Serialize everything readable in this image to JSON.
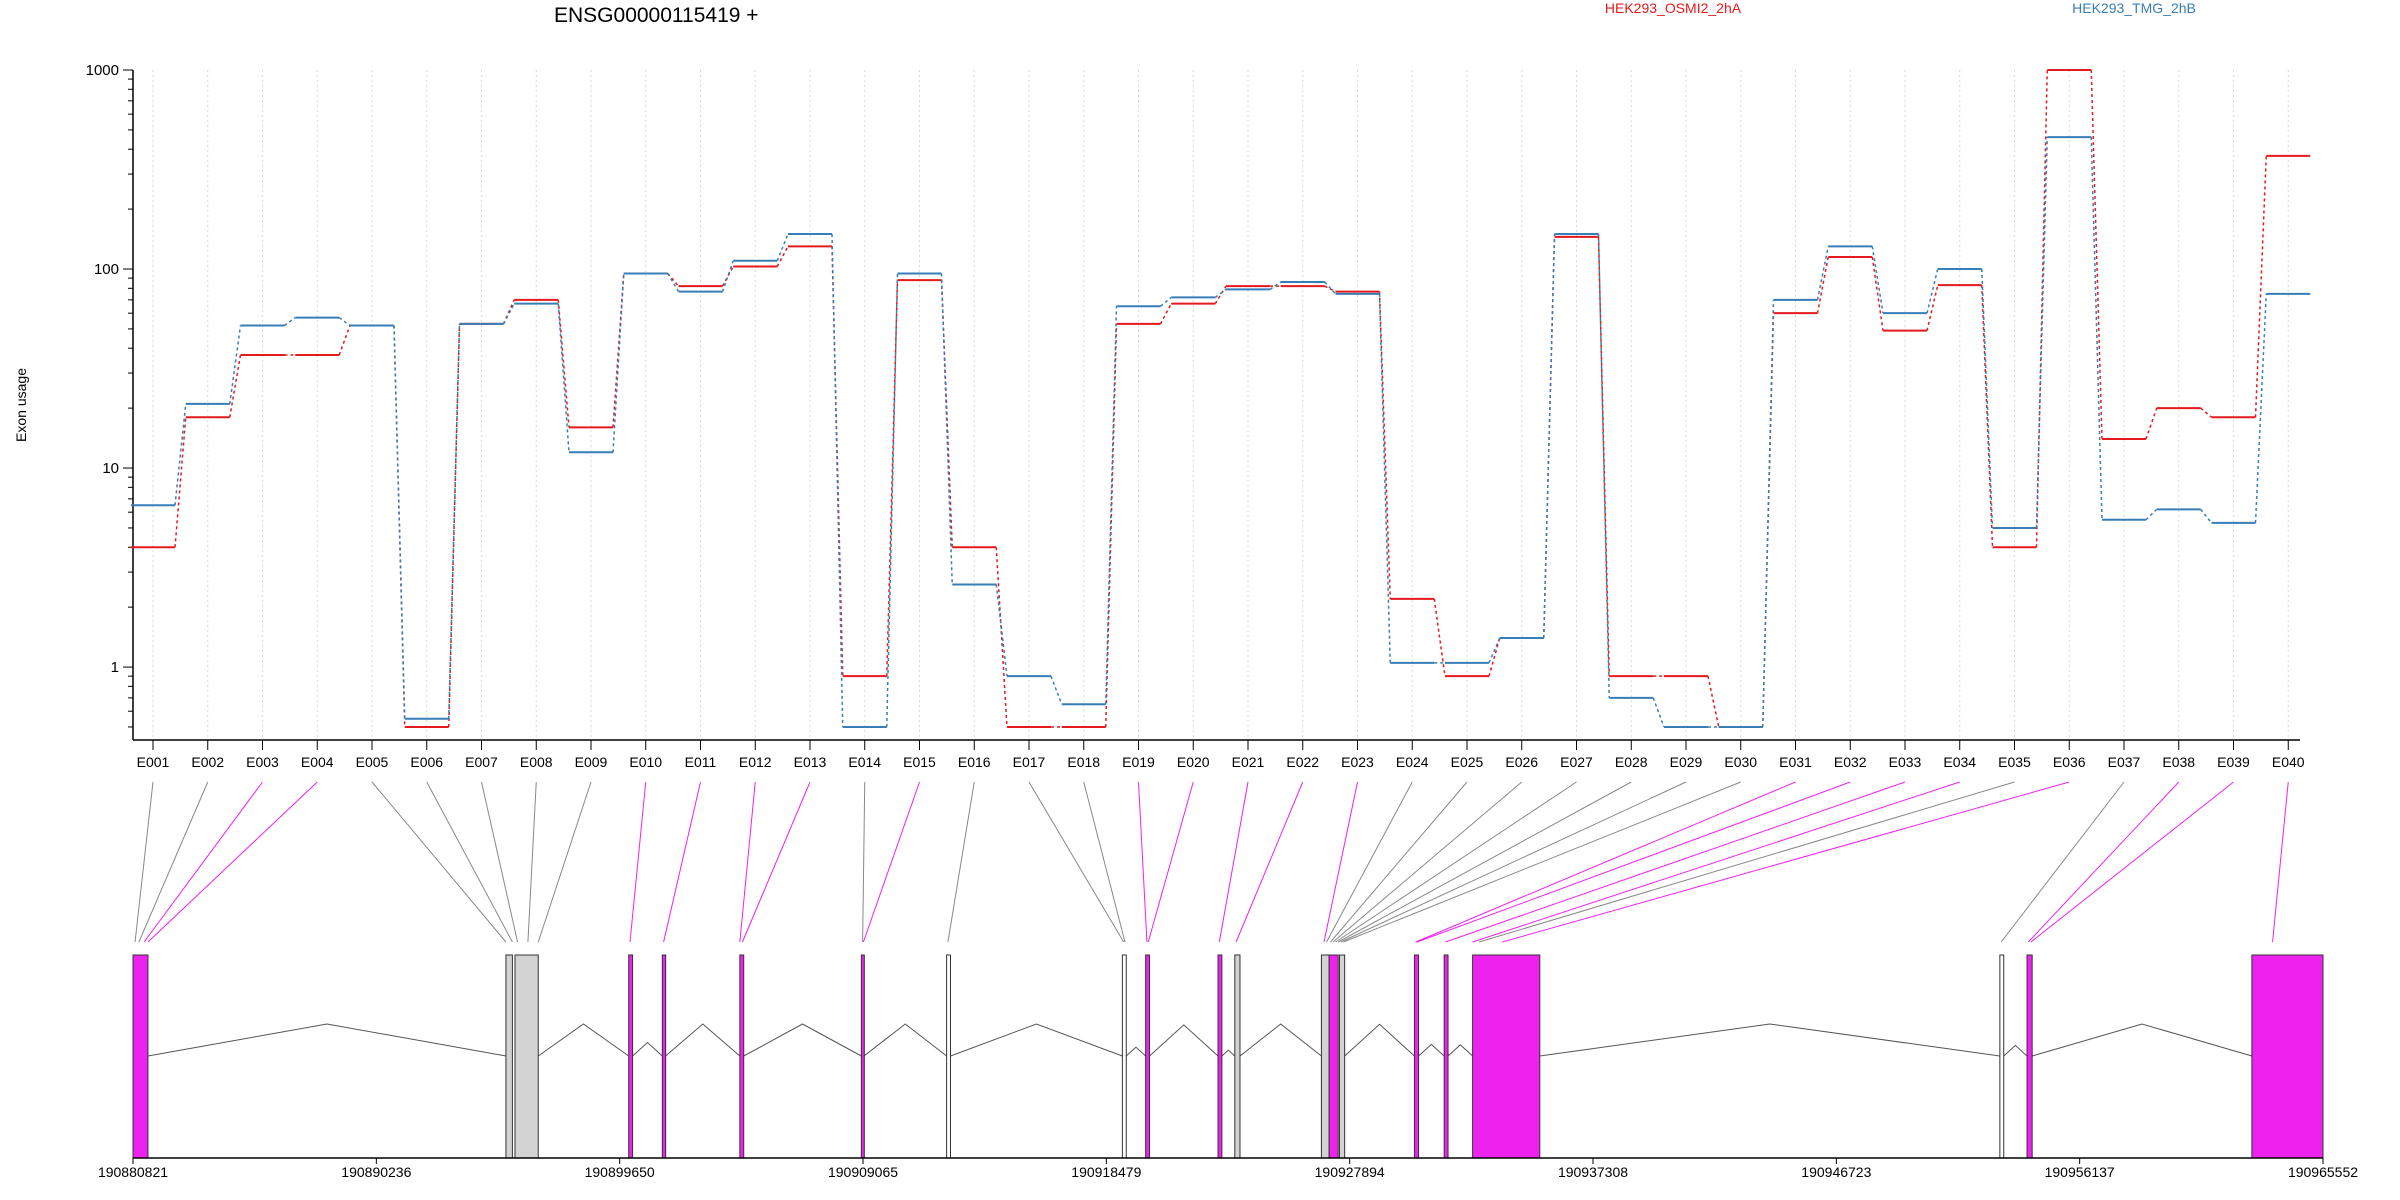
{
  "chart_data": {
    "type": "line",
    "title": "ENSG00000115419 +",
    "ylabel": "Exon usage",
    "yscale": "log",
    "ylim": [
      0.5,
      1000
    ],
    "yticks": [
      "1",
      "10",
      "100",
      "1000"
    ],
    "categories": [
      "E001",
      "E002",
      "E003",
      "E004",
      "E005",
      "E006",
      "E007",
      "E008",
      "E009",
      "E010",
      "E011",
      "E012",
      "E013",
      "E014",
      "E015",
      "E016",
      "E017",
      "E018",
      "E019",
      "E020",
      "E021",
      "E022",
      "E023",
      "E024",
      "E025",
      "E026",
      "E027",
      "E028",
      "E029",
      "E030",
      "E031",
      "E032",
      "E033",
      "E034",
      "E035",
      "E036",
      "E037",
      "E038",
      "E039",
      "E040"
    ],
    "series": [
      {
        "name": "HEK293_OSMI2_2hA",
        "color": "#e41a1c",
        "values": [
          4.0,
          18,
          37,
          37,
          52,
          0.5,
          53,
          70,
          16,
          95,
          82,
          103,
          130,
          0.9,
          88,
          4.0,
          0.5,
          0.5,
          53,
          67,
          82,
          82,
          77,
          2.2,
          0.9,
          1.4,
          145,
          0.9,
          0.9,
          0.5,
          60,
          115,
          49,
          83,
          4.0,
          1000,
          14,
          20,
          18,
          370
        ]
      },
      {
        "name": "HEK293_TMG_2hB",
        "color": "#377eb8",
        "values": [
          6.5,
          21,
          52,
          57,
          52,
          0.55,
          53,
          67,
          12,
          95,
          77,
          110,
          150,
          0.5,
          95,
          2.6,
          0.9,
          0.65,
          65,
          72,
          79,
          86,
          75,
          1.05,
          1.05,
          1.4,
          150,
          0.7,
          0.5,
          0.5,
          70,
          130,
          60,
          100,
          5.0,
          460,
          5.5,
          6.2,
          5.3,
          75
        ]
      }
    ],
    "grid": true,
    "legend": "top-right",
    "gene_axis": {
      "ticks": [
        "190880821",
        "190890236",
        "190899650",
        "190909065",
        "190918479",
        "190927894",
        "190937308",
        "190946723",
        "190956137",
        "190965552"
      ],
      "range": [
        190880821,
        190965552
      ]
    },
    "gene_model": {
      "exons": [
        {
          "start": 190880821,
          "end": 190881400,
          "color": "#ee22ee"
        },
        {
          "start": 190895250,
          "end": 190895500,
          "color": "#d3d3d3"
        },
        {
          "start": 190895600,
          "end": 190896500,
          "color": "#d3d3d3"
        },
        {
          "start": 190900000,
          "end": 190900150,
          "color": "#ee22ee"
        },
        {
          "start": 190901300,
          "end": 190901430,
          "color": "#ee22ee"
        },
        {
          "start": 190904300,
          "end": 190904450,
          "color": "#ee22ee"
        },
        {
          "start": 190909000,
          "end": 190909100,
          "color": "#ee22ee"
        },
        {
          "start": 190912300,
          "end": 190912450,
          "color": "#ffffff"
        },
        {
          "start": 190919100,
          "end": 190919250,
          "color": "#ffffff"
        },
        {
          "start": 190920000,
          "end": 190920150,
          "color": "#ee22ee"
        },
        {
          "start": 190922800,
          "end": 190922950,
          "color": "#ee22ee"
        },
        {
          "start": 190923450,
          "end": 190923650,
          "color": "#d3d3d3"
        },
        {
          "start": 190926800,
          "end": 190927100,
          "color": "#d3d3d3"
        },
        {
          "start": 190927100,
          "end": 190927450,
          "color": "#ee22ee"
        },
        {
          "start": 190927500,
          "end": 190927700,
          "color": "#d3d3d3"
        },
        {
          "start": 190930400,
          "end": 190930560,
          "color": "#ee22ee"
        },
        {
          "start": 190931550,
          "end": 190931700,
          "color": "#ee22ee"
        },
        {
          "start": 190932650,
          "end": 190935250,
          "color": "#ee22ee"
        },
        {
          "start": 190953050,
          "end": 190953200,
          "color": "#ffffff"
        },
        {
          "start": 190954100,
          "end": 190954300,
          "color": "#ee22ee"
        },
        {
          "start": 190962800,
          "end": 190965552,
          "color": "#ee22ee"
        }
      ],
      "exon_anchor_positions": [
        190880900,
        190881050,
        190881250,
        190881400,
        190895250,
        190895500,
        190895700,
        190896100,
        190896500,
        190900050,
        190901350,
        190904300,
        190904400,
        190909050,
        190909080,
        190912350,
        190919150,
        190919200,
        190920050,
        190920100,
        190922850,
        190923500,
        190926900,
        190927000,
        190927150,
        190927250,
        190927350,
        190927450,
        190927550,
        190927650,
        190930450,
        190930500,
        190931600,
        190932650,
        190932900,
        190933800,
        190953100,
        190954150,
        190954250,
        190963600
      ],
      "link_colors": [
        "#888888",
        "#888888",
        "#ee22ee",
        "#ee22ee",
        "#888888",
        "#888888",
        "#888888",
        "#888888",
        "#888888",
        "#ee22ee",
        "#ee22ee",
        "#ee22ee",
        "#ee22ee",
        "#888888",
        "#ee22ee",
        "#888888",
        "#888888",
        "#888888",
        "#ee22ee",
        "#ee22ee",
        "#ee22ee",
        "#ee22ee",
        "#ee22ee",
        "#888888",
        "#888888",
        "#888888",
        "#888888",
        "#888888",
        "#888888",
        "#888888",
        "#ee22ee",
        "#ee22ee",
        "#ee22ee",
        "#ee22ee",
        "#888888",
        "#ee22ee",
        "#888888",
        "#ee22ee",
        "#ee22ee",
        "#ee22ee"
      ]
    }
  }
}
